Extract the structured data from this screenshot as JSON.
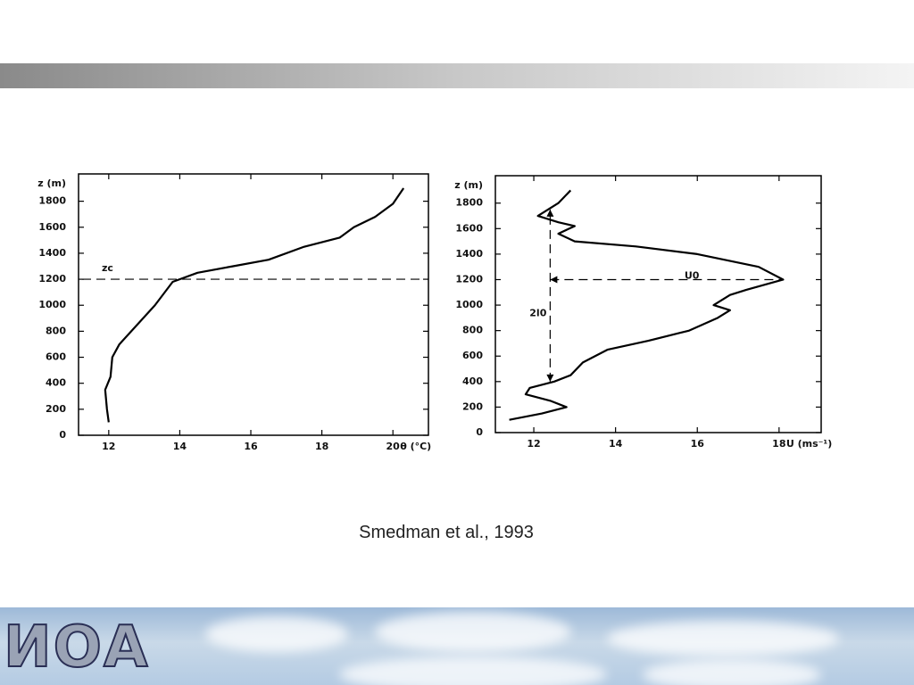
{
  "chart_data": [
    {
      "type": "line",
      "x_label": "θ (°C)",
      "y_label": "z (m)",
      "x": [
        12.0,
        11.95,
        11.9,
        12.05,
        12.1,
        12.3,
        12.8,
        13.3,
        13.8,
        14.5,
        15.5,
        16.5,
        17.5,
        18.5,
        18.9,
        19.5,
        20.0,
        20.3
      ],
      "values": [
        100,
        200,
        350,
        450,
        600,
        700,
        850,
        1000,
        1180,
        1250,
        1300,
        1350,
        1450,
        1520,
        1600,
        1680,
        1780,
        1900
      ],
      "color": "#000000",
      "xlim": [
        11.15,
        21
      ],
      "ylim": [
        0,
        2010
      ],
      "xticks": [
        12,
        14,
        16,
        18,
        20
      ],
      "yticks": [
        0,
        200,
        400,
        600,
        800,
        1000,
        1200,
        1400,
        1600,
        1800
      ],
      "hlines": [
        {
          "y": 1200,
          "label": "zc"
        }
      ]
    },
    {
      "type": "line",
      "x_label": "U (ms⁻¹)",
      "y_label": "z (m)",
      "x": [
        11.4,
        12.2,
        12.8,
        12.4,
        11.8,
        11.9,
        12.5,
        12.9,
        13.2,
        13.8,
        14.8,
        15.8,
        16.5,
        16.8,
        16.4,
        16.8,
        17.2,
        18.1,
        17.5,
        16.0,
        14.5,
        13.0,
        12.6,
        13.0,
        12.6,
        12.1,
        12.6,
        12.9
      ],
      "values": [
        100,
        150,
        200,
        250,
        300,
        350,
        400,
        450,
        550,
        650,
        720,
        800,
        900,
        960,
        1000,
        1080,
        1120,
        1200,
        1300,
        1400,
        1460,
        1500,
        1560,
        1620,
        1650,
        1700,
        1800,
        1900
      ],
      "color": "#000000",
      "xlim": [
        11.06,
        19.03
      ],
      "ylim": [
        0,
        2015
      ],
      "xticks": [
        12,
        14,
        16,
        18
      ],
      "yticks": [
        0,
        200,
        400,
        600,
        800,
        1000,
        1200,
        1400,
        1600,
        1800
      ],
      "hlines": [
        {
          "y": 1200,
          "x": [
            12.4,
            18.1
          ],
          "label": "U0"
        }
      ],
      "vlines": [
        {
          "x": 12.4,
          "y": [
            400,
            1750
          ],
          "label": "2l0"
        }
      ]
    }
  ],
  "caption": "Smedman et al., 1993",
  "footer": {
    "logo": "ИОА"
  }
}
